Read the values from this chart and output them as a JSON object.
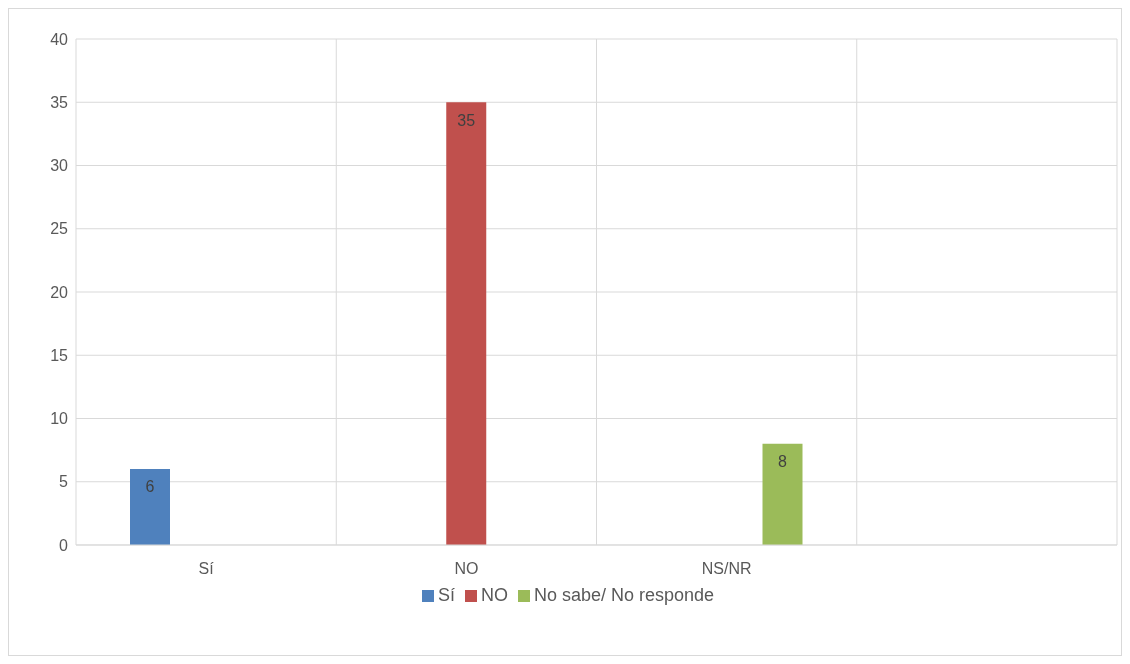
{
  "chart_data": {
    "type": "bar",
    "categories": [
      "Sí",
      "NO",
      "NS/NR",
      null
    ],
    "series": [
      {
        "name": "Sí",
        "color": "#4f81bd",
        "values": [
          6,
          null,
          null,
          null
        ]
      },
      {
        "name": "NO",
        "color": "#c0504d",
        "values": [
          null,
          35,
          null,
          null
        ]
      },
      {
        "name": "No sabe/ No responde",
        "color": "#9bbb59",
        "values": [
          null,
          null,
          8,
          null
        ]
      }
    ],
    "ylim": [
      0,
      40
    ],
    "yticks": [
      0,
      5,
      10,
      15,
      20,
      25,
      30,
      35,
      40
    ],
    "grid": true,
    "legend": "bottom",
    "data_labels": true
  }
}
